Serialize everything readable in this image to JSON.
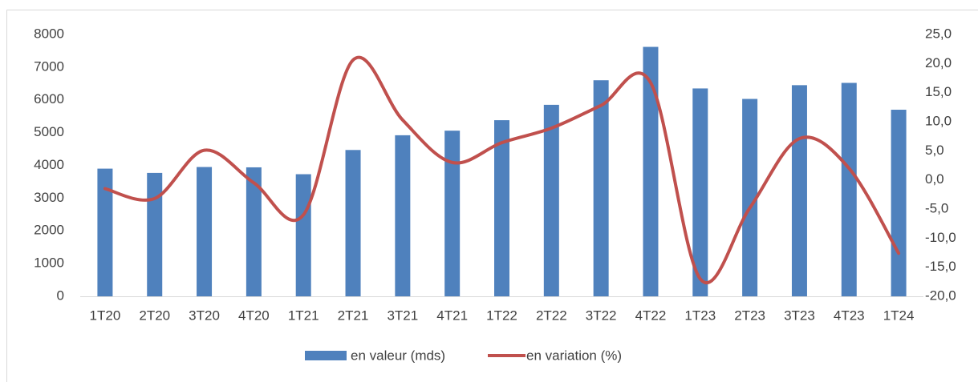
{
  "chart_data": {
    "type": "bar-line",
    "categories": [
      "1T20",
      "2T20",
      "3T20",
      "4T20",
      "1T21",
      "2T21",
      "3T21",
      "4T21",
      "1T22",
      "2T22",
      "3T22",
      "4T22",
      "1T23",
      "2T23",
      "3T23",
      "4T23",
      "1T24"
    ],
    "series": [
      {
        "name": "en valeur (mds)",
        "type": "bar",
        "color": "#4f81bd",
        "values": [
          3900,
          3770,
          3950,
          3940,
          3730,
          4470,
          4920,
          5060,
          5380,
          5850,
          6600,
          7620,
          6350,
          6030,
          6450,
          6520,
          5700
        ]
      },
      {
        "name": "en variation (%)",
        "type": "line",
        "axis": "y2",
        "smooth": true,
        "color": "#c0504d",
        "values": [
          -1.5,
          -3.2,
          5.1,
          -0.5,
          -6.0,
          20.6,
          10.3,
          3.0,
          6.4,
          8.9,
          12.8,
          16.7,
          -17.0,
          -4.8,
          7.1,
          2.0,
          -12.6
        ]
      }
    ],
    "ylim": [
      0,
      8000
    ],
    "yticks": [
      0,
      1000,
      2000,
      3000,
      4000,
      5000,
      6000,
      7000,
      8000
    ],
    "y2lim": [
      -20,
      25
    ],
    "y2ticks": [
      {
        "value": -20,
        "label": "-20,0"
      },
      {
        "value": -15,
        "label": "-15,0"
      },
      {
        "value": -10,
        "label": "-10,0"
      },
      {
        "value": -5,
        "label": "-5,0"
      },
      {
        "value": 0,
        "label": "0,0"
      },
      {
        "value": 5,
        "label": "5,0"
      },
      {
        "value": 10,
        "label": "10,0"
      },
      {
        "value": 15,
        "label": "15,0"
      },
      {
        "value": 20,
        "label": "20,0"
      },
      {
        "value": 25,
        "label": "25,0"
      }
    ],
    "grid": false,
    "legend": "bottom"
  }
}
